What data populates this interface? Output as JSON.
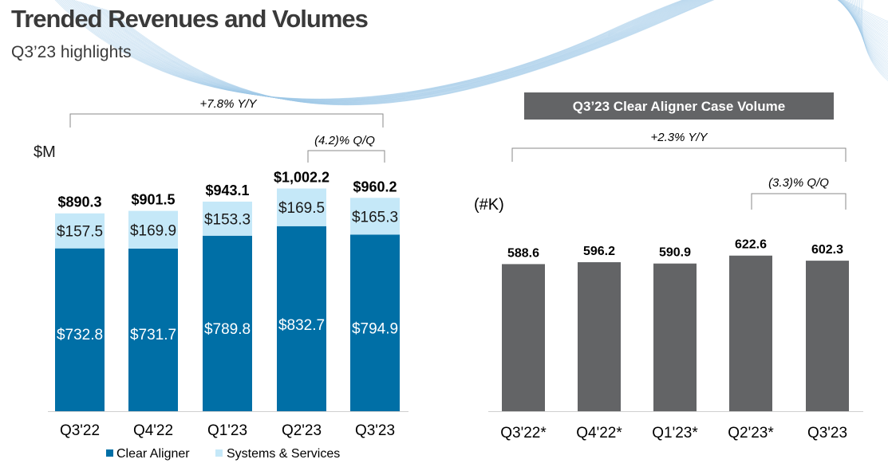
{
  "header": {
    "title": "Trended Revenues and Volumes",
    "subtitle": "Q3’23 highlights"
  },
  "colors": {
    "clear_aligner": "#006fa6",
    "systems_services": "#c5e8f8",
    "volume_bar": "#636466",
    "title_box": "#636466"
  },
  "chart_data": [
    {
      "type": "bar",
      "stacked": true,
      "unit_label": "$M",
      "categories": [
        "Q3'22",
        "Q4'22",
        "Q1'23",
        "Q2'23",
        "Q3'23"
      ],
      "series": [
        {
          "name": "Clear Aligner",
          "values": [
            732.8,
            731.7,
            789.8,
            832.7,
            794.9
          ],
          "labels": [
            "$732.8",
            "$731.7",
            "$789.8",
            "$832.7",
            "$794.9"
          ]
        },
        {
          "name": "Systems & Services",
          "values": [
            157.5,
            169.9,
            153.3,
            169.5,
            165.3
          ],
          "labels": [
            "$157.5",
            "$169.9",
            "$153.3",
            "$169.5",
            "$165.3"
          ]
        }
      ],
      "totals": [
        "$890.3",
        "$901.5",
        "$943.1",
        "$1,002.2",
        "$960.2"
      ],
      "annotations": {
        "yy": "+7.8% Y/Y",
        "qq": "(4.2)% Q/Q"
      },
      "ylim": [
        0,
        1040
      ],
      "legend": "bottom"
    },
    {
      "type": "bar",
      "title": "Q3’23 Clear Aligner Case Volume",
      "unit_label": "(#K)",
      "categories": [
        "Q3'22*",
        "Q4'22*",
        "Q1'23*",
        "Q2'23*",
        "Q3'23"
      ],
      "values": [
        588.6,
        596.2,
        590.9,
        622.6,
        602.3
      ],
      "labels": [
        "588.6",
        "596.2",
        "590.9",
        "622.6",
        "602.3"
      ],
      "annotations": {
        "yy": "+2.3% Y/Y",
        "qq": "(3.3)% Q/Q"
      },
      "ylim": [
        0,
        845
      ]
    }
  ]
}
